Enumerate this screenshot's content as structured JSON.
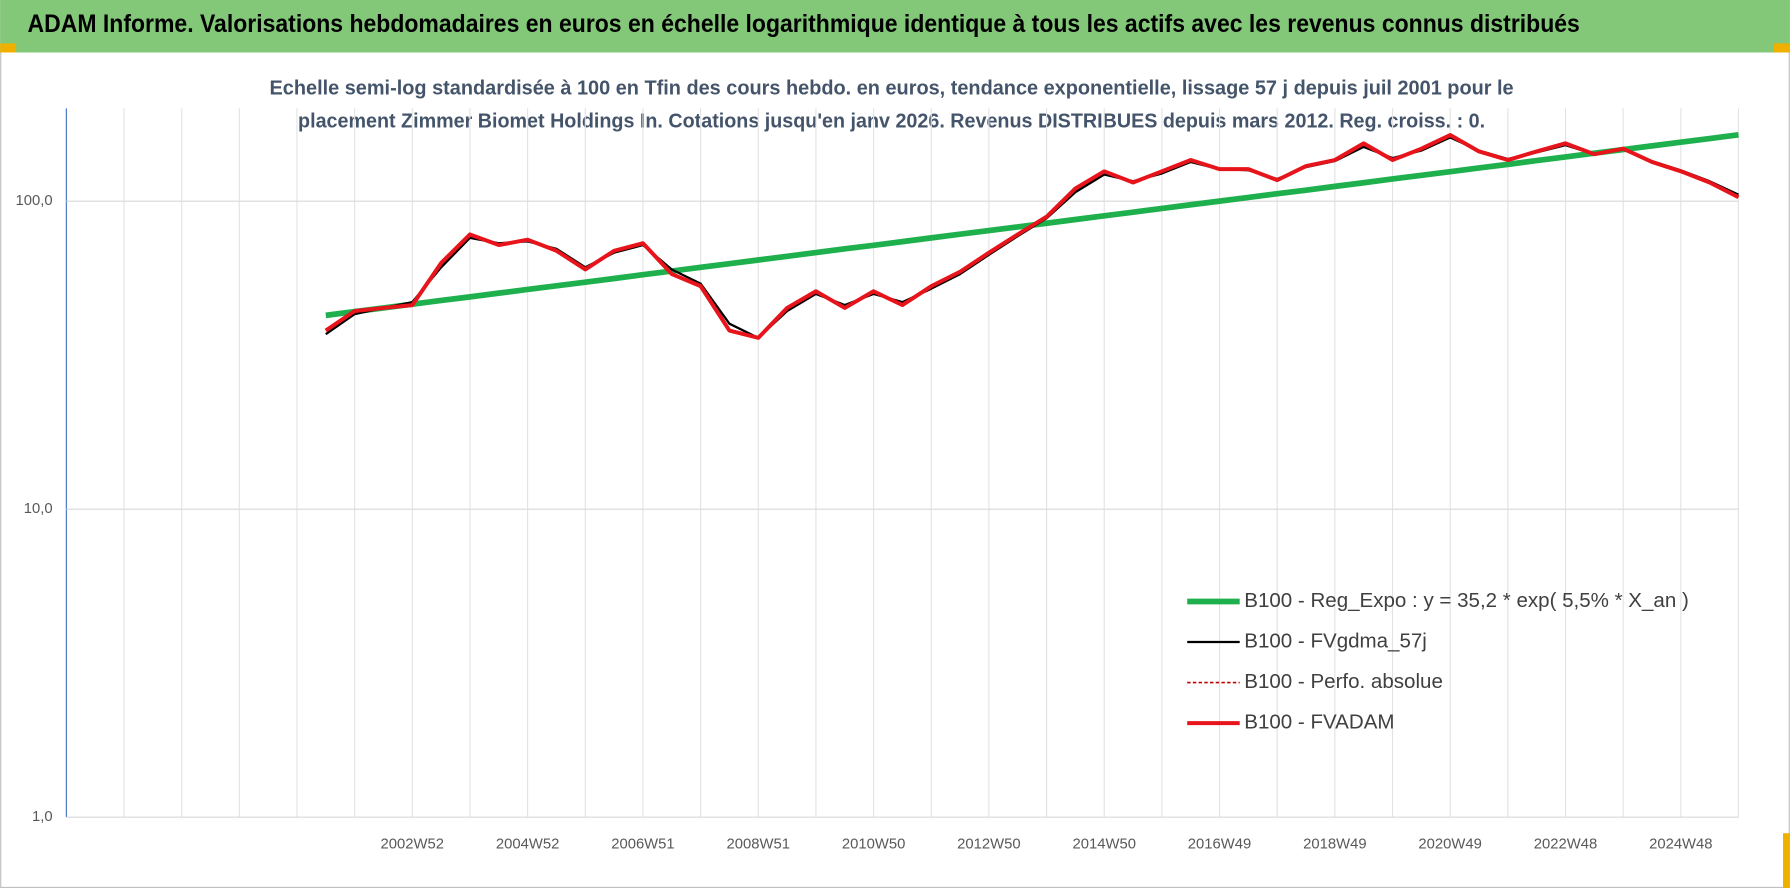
{
  "chart_data": {
    "type": "line",
    "header": "ADAM Informe. Valorisations hebdomadaires en euros en échelle logarithmique identique à tous les actifs avec les revenus connus distribués",
    "subtitle": [
      "Echelle semi-log standardisée à 100 en Tfin des cours hebdo. en euros, tendance exponentielle, lissage 57 j depuis juil 2001 pour le",
      "placement Zimmer Biomet Holdings In. Cotations jusqu'en janv 2026.  Revenus DISTRIBUES depuis mars 2012. Reg. croiss. : 0."
    ],
    "log_scale": true,
    "grid": true,
    "legend": "lower right",
    "ylim": [
      1,
      200
    ],
    "yticks": [
      {
        "value": 1,
        "label": "1,0"
      },
      {
        "value": 10,
        "label": "10,0"
      },
      {
        "value": 100,
        "label": "100,0"
      }
    ],
    "categories": [
      null,
      null,
      null,
      null,
      null,
      null,
      null,
      null,
      null,
      null,
      null,
      null,
      "2002W52",
      null,
      null,
      null,
      "2004W52",
      null,
      null,
      null,
      "2006W51",
      null,
      null,
      null,
      "2008W51",
      null,
      null,
      null,
      "2010W50",
      null,
      null,
      null,
      "2012W50",
      null,
      null,
      null,
      "2014W50",
      null,
      null,
      null,
      "2016W49",
      null,
      null,
      null,
      "2018W49",
      null,
      null,
      null,
      "2020W49",
      null,
      null,
      null,
      "2022W48",
      null,
      null,
      null,
      "2024W48",
      null,
      null
    ],
    "series": [
      {
        "name": "B100 - Reg_Expo : y = 35,2 * exp( 5,5% *  X_an )",
        "color": "#1fb04e",
        "width": 5,
        "dash": null,
        "values": [
          null,
          null,
          null,
          null,
          null,
          null,
          null,
          null,
          null,
          42.6,
          43.8,
          45.0,
          46.3,
          47.6,
          48.9,
          50.3,
          51.7,
          53.1,
          54.6,
          56.1,
          57.7,
          59.3,
          61.0,
          62.7,
          64.4,
          66.2,
          68.1,
          70.0,
          71.9,
          73.9,
          76.0,
          78.1,
          80.3,
          82.5,
          84.8,
          87.2,
          89.6,
          92.1,
          94.7,
          97.3,
          100.0,
          102.8,
          105.7,
          108.6,
          111.7,
          114.8,
          118.0,
          121.3,
          124.7,
          128.2,
          131.7,
          135.4,
          139.2,
          143.1,
          147.1,
          151.2,
          155.4,
          159.7,
          164.2
        ]
      },
      {
        "name": "B100 - FVgdma_57j",
        "color": "#000000",
        "width": 2,
        "dash": null,
        "values": [
          null,
          null,
          null,
          null,
          null,
          null,
          null,
          null,
          null,
          37,
          43,
          45,
          47,
          61,
          76,
          73,
          74,
          70,
          61,
          68,
          72,
          60,
          54,
          40,
          36,
          44,
          50,
          46,
          50,
          47,
          52,
          58,
          67,
          77,
          88,
          107,
          122,
          116,
          123,
          134,
          127,
          126,
          118,
          129,
          135,
          150,
          138,
          146,
          161,
          146,
          137,
          144,
          152,
          142,
          147,
          135,
          126,
          116,
          105
        ]
      },
      {
        "name": "B100 - Perfo. absolue",
        "color": "#c00000",
        "width": 1.5,
        "dash": "3 2",
        "values": [
          null,
          null,
          null,
          null,
          null,
          null,
          null,
          null,
          null,
          38,
          44,
          45,
          46,
          63,
          78,
          72,
          75,
          69,
          60,
          69,
          73,
          58,
          53,
          38,
          36,
          45,
          51,
          45,
          51,
          46,
          53,
          59,
          68,
          78,
          89,
          110,
          125,
          115,
          125,
          136,
          127,
          127,
          117,
          130,
          136,
          154,
          136,
          148,
          164,
          145,
          136,
          145,
          154,
          142,
          148,
          134,
          125,
          115,
          103
        ]
      },
      {
        "name": "B100 - FVADAM",
        "color": "#e8141b",
        "width": 3.5,
        "dash": null,
        "values": [
          null,
          null,
          null,
          null,
          null,
          null,
          null,
          null,
          null,
          38,
          44,
          45,
          46,
          63,
          78,
          72,
          75,
          69,
          60,
          69,
          73,
          58,
          53,
          38,
          36,
          45,
          51,
          45,
          51,
          46,
          53,
          59,
          68,
          78,
          89,
          110,
          125,
          115,
          125,
          136,
          127,
          127,
          117,
          130,
          136,
          154,
          136,
          148,
          164,
          145,
          136,
          145,
          154,
          142,
          148,
          134,
          125,
          115,
          103
        ]
      }
    ]
  }
}
